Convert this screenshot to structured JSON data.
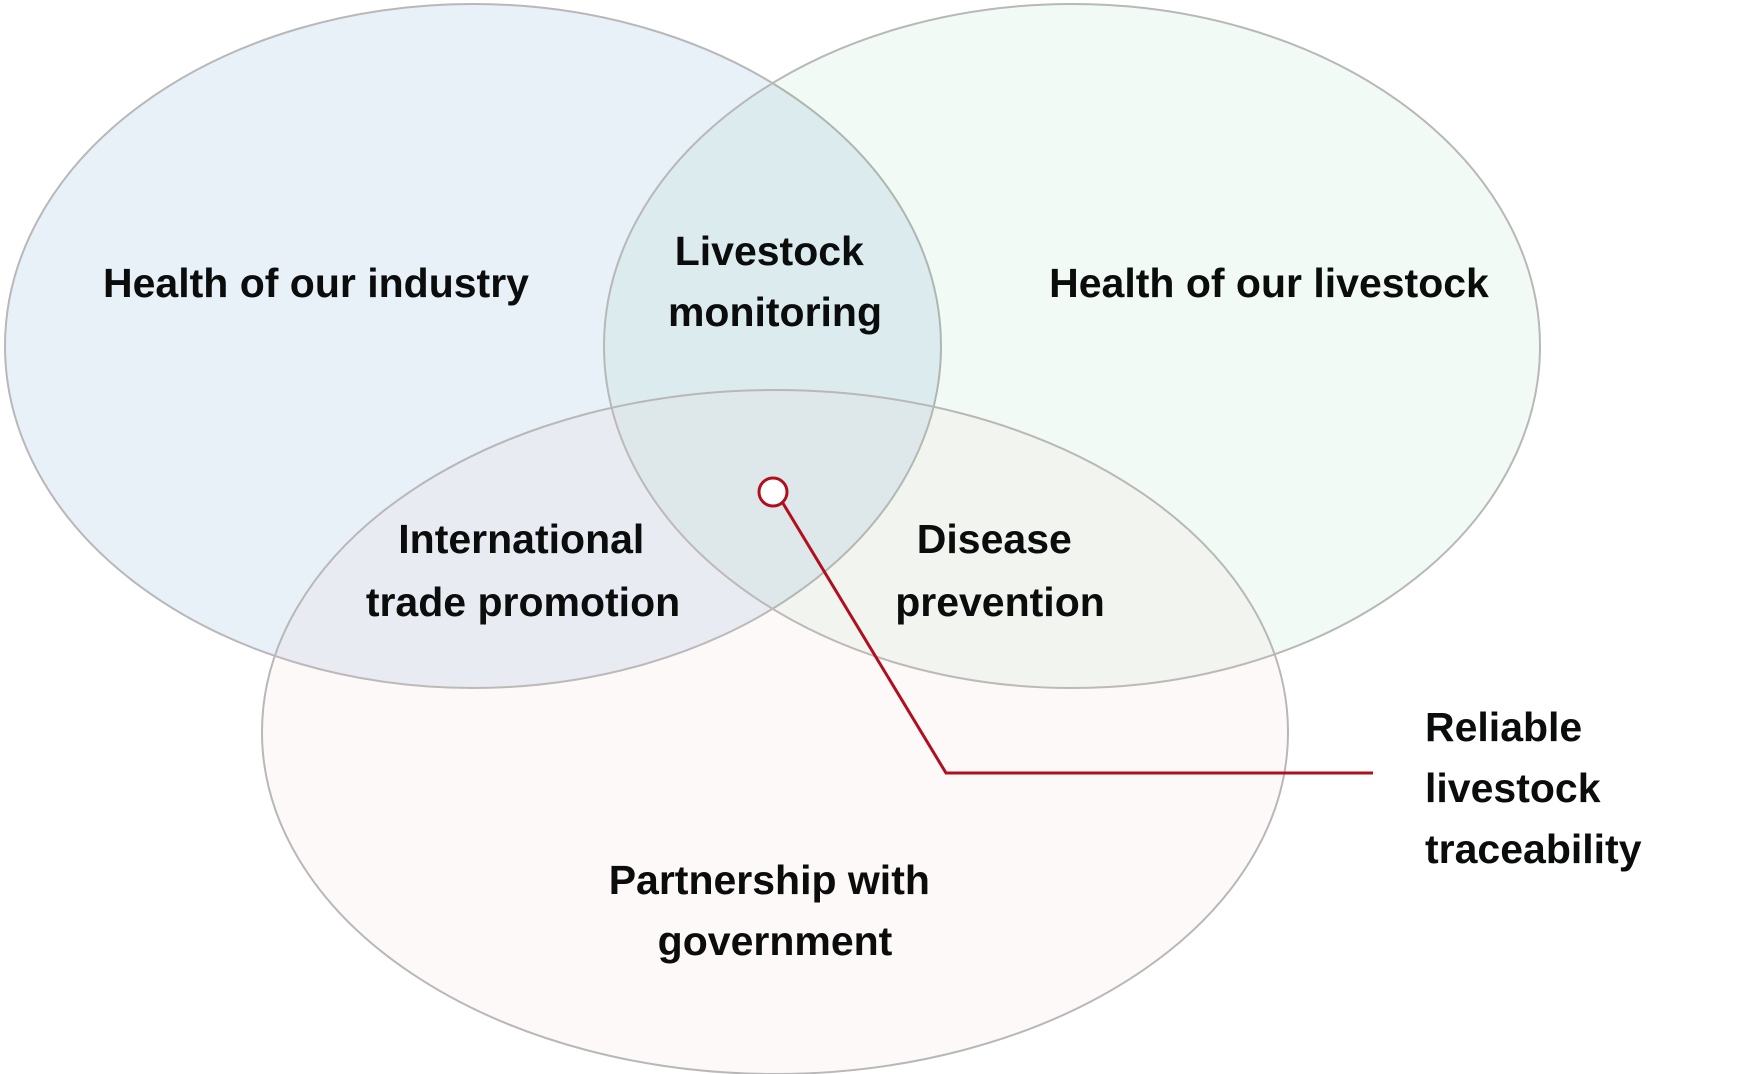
{
  "sets": [
    {
      "label": "Health of our industry",
      "color": "#1d70b8",
      "fill_opacity": 0.1
    },
    {
      "label": "Health of our livestock",
      "color": "#00a33b",
      "fill_opacity": 0.05
    },
    {
      "label_lines": [
        "Partnership with",
        "government"
      ],
      "color": "#f4c8c8",
      "fill_opacity": 0.1
    }
  ],
  "intersections": {
    "industry_livestock": [
      "Livestock",
      "monitoring"
    ],
    "industry_government": [
      "International",
      "trade promotion"
    ],
    "livestock_government": [
      "Disease",
      "prevention"
    ]
  },
  "callout": {
    "label_lines": [
      "Reliable",
      "livestock",
      "traceability"
    ],
    "color": "#b10e1e"
  },
  "outline_color": "#b8b8b8",
  "text_color": "#0b0c0c"
}
